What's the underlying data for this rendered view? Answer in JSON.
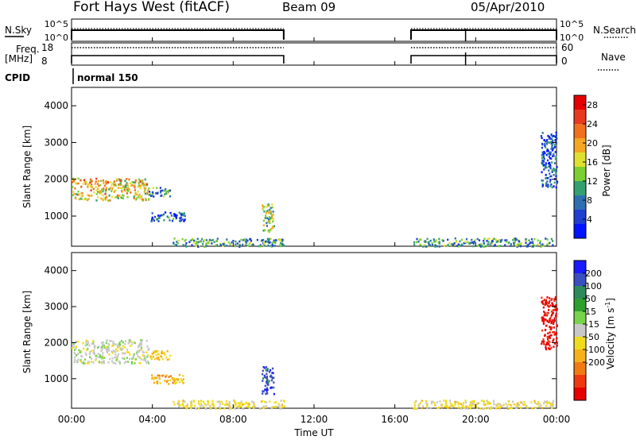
{
  "header": {
    "station": "Fort Hays West (fitACF)",
    "beam": "Beam 09",
    "date": "05/Apr/2010"
  },
  "summary_panels": {
    "nsky_label": "N.Sky",
    "nsky_ticks": [
      "10^5",
      "10^0"
    ],
    "nsearch_label": "N.Search",
    "nsearch_ticks": [
      "10^5",
      "10^0"
    ],
    "freq_label": "Freq.",
    "freq_unit": "[MHz]",
    "freq_ticks": [
      "18",
      "8"
    ],
    "nave_label": "Nave",
    "nave_ticks": [
      "60",
      "0"
    ],
    "cpid_label": "CPID",
    "cpid_value": "normal 150",
    "operating_intervals": [
      [
        0.0,
        10.5
      ],
      [
        16.8,
        24.0
      ]
    ],
    "cpid_change_time": 19.5
  },
  "chart_data": [
    {
      "type": "heatmap",
      "title": "",
      "xlabel": "Time UT",
      "ylabel": "Slant Range [km]",
      "x_range_hours": [
        0,
        24
      ],
      "x_ticks": [
        "00:00",
        "04:00",
        "08:00",
        "12:00",
        "16:00",
        "20:00",
        "00:00"
      ],
      "ylim": [
        180,
        4500
      ],
      "y_ticks": [
        1000,
        2000,
        3000,
        4000
      ],
      "colorbar": {
        "label": "Power [dB]",
        "ticks": [
          4,
          8,
          12,
          16,
          20,
          24,
          28
        ],
        "colors": [
          "#0014ff",
          "#1f3fd0",
          "#2d6fb0",
          "#34a070",
          "#7ccf33",
          "#e0e030",
          "#f5a623",
          "#f07020",
          "#e83a20",
          "#e60000"
        ]
      },
      "echo_regions": [
        {
          "t0": 0.0,
          "t1": 3.8,
          "r0": 1450,
          "r1": 2050,
          "value": 18
        },
        {
          "t0": 3.8,
          "t1": 4.9,
          "r0": 1550,
          "r1": 1800,
          "value": 10
        },
        {
          "t0": 3.9,
          "t1": 5.6,
          "r0": 880,
          "r1": 1130,
          "value": 6
        },
        {
          "t0": 9.4,
          "t1": 10.0,
          "r0": 600,
          "r1": 1350,
          "value": 14
        },
        {
          "t0": 5.0,
          "t1": 10.5,
          "r0": 190,
          "r1": 420,
          "value": 10
        },
        {
          "t0": 16.9,
          "t1": 23.8,
          "r0": 190,
          "r1": 420,
          "value": 10
        },
        {
          "t0": 23.2,
          "t1": 24.0,
          "r0": 1800,
          "r1": 3300,
          "value": 5
        }
      ]
    },
    {
      "type": "heatmap",
      "title": "",
      "xlabel": "Time UT",
      "ylabel": "Slant Range [km]",
      "x_range_hours": [
        0,
        24
      ],
      "x_ticks": [
        "00:00",
        "04:00",
        "08:00",
        "12:00",
        "16:00",
        "20:00",
        "00:00"
      ],
      "ylim": [
        180,
        4500
      ],
      "y_ticks": [
        1000,
        2000,
        3000,
        4000
      ],
      "colorbar": {
        "label": "Velocity [m s",
        "label_sup": "-1",
        "label_end": "]",
        "ticks": [
          "200",
          "100",
          "50",
          "15",
          "-15",
          "-50",
          "-100",
          "-200"
        ],
        "colors": [
          "#1a1aff",
          "#3a4fc0",
          "#2e8a5a",
          "#2ea02e",
          "#77d44a",
          "#c8c8c8",
          "#f0dc1e",
          "#f5b01a",
          "#f07a14",
          "#ee3a10",
          "#e60000"
        ]
      },
      "echo_regions": [
        {
          "t0": 0.0,
          "t1": 3.8,
          "r0": 1450,
          "r1": 2100,
          "value": 0
        },
        {
          "t0": 3.8,
          "t1": 4.9,
          "r0": 1550,
          "r1": 1800,
          "value": -60
        },
        {
          "t0": 3.9,
          "t1": 5.6,
          "r0": 880,
          "r1": 1130,
          "value": -70
        },
        {
          "t0": 9.4,
          "t1": 10.0,
          "r0": 600,
          "r1": 1350,
          "value": 150
        },
        {
          "t0": 5.0,
          "t1": 10.5,
          "r0": 190,
          "r1": 420,
          "value": -30
        },
        {
          "t0": 16.9,
          "t1": 23.8,
          "r0": 190,
          "r1": 420,
          "value": -30
        },
        {
          "t0": 23.2,
          "t1": 24.0,
          "r0": 1800,
          "r1": 3300,
          "value": -180
        }
      ]
    }
  ]
}
